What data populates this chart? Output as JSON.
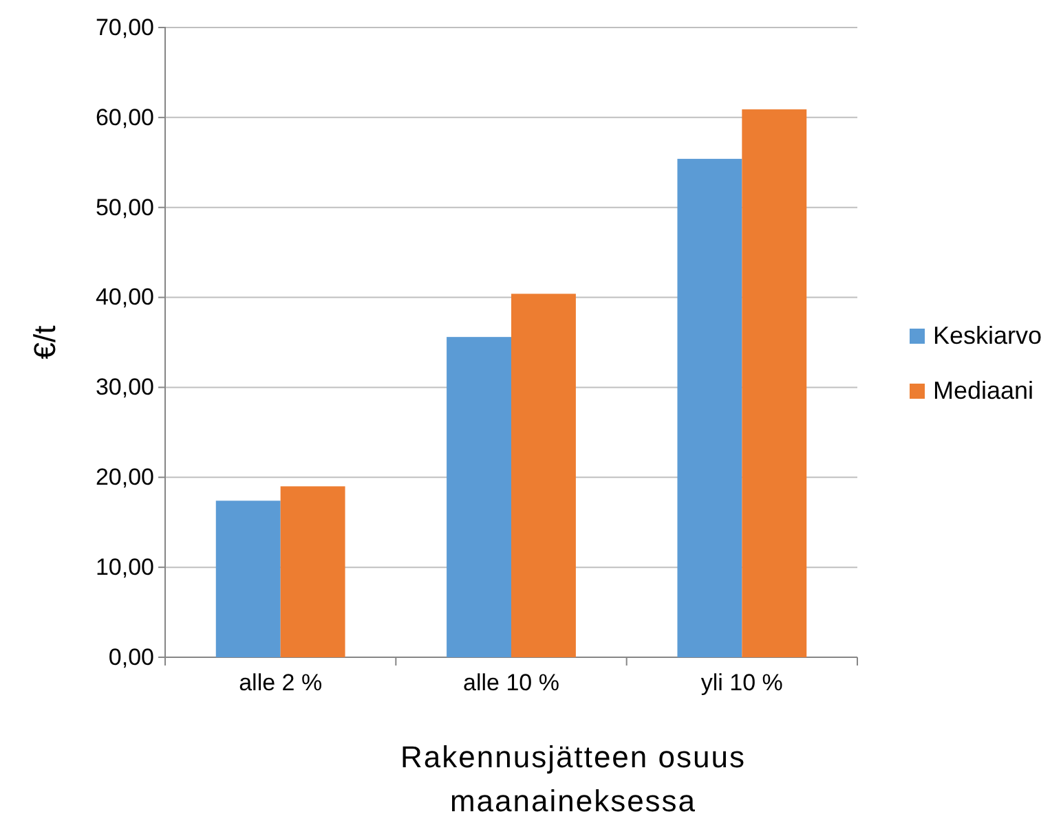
{
  "chart_data": {
    "type": "bar",
    "xlabel": "Rakennusjätteen osuus\nmaanaineksessa",
    "ylabel": "€/t",
    "categories": [
      "alle 2 %",
      "alle 10 %",
      "yli 10 %"
    ],
    "series": [
      {
        "name": "Keskiarvo",
        "color": "#5b9bd5",
        "values": [
          17.4,
          35.6,
          55.4
        ]
      },
      {
        "name": "Mediaani",
        "color": "#ed7d31",
        "values": [
          19.0,
          40.4,
          60.9
        ]
      }
    ],
    "ylim": [
      0,
      70
    ],
    "yticks": [
      {
        "value": 0,
        "label": "0,00"
      },
      {
        "value": 10,
        "label": "10,00"
      },
      {
        "value": 20,
        "label": "20,00"
      },
      {
        "value": 30,
        "label": "30,00"
      },
      {
        "value": 40,
        "label": "40,00"
      },
      {
        "value": 50,
        "label": "50,00"
      },
      {
        "value": 60,
        "label": "60,00"
      },
      {
        "value": 70,
        "label": "70,00"
      }
    ],
    "grid": "y",
    "legend": "right"
  }
}
